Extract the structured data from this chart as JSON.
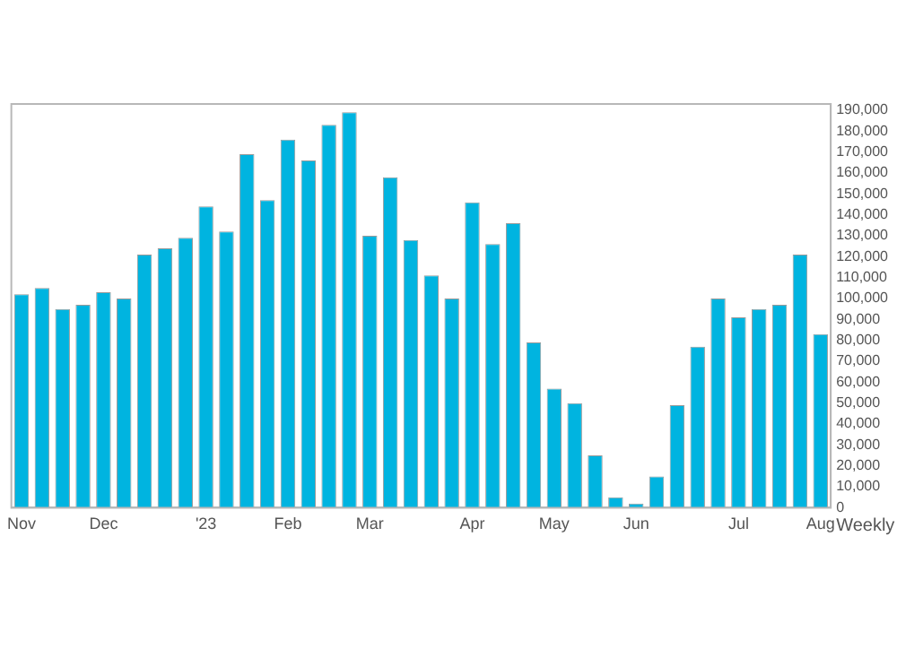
{
  "chart_data": {
    "type": "bar",
    "categories": [
      "Nov",
      null,
      null,
      null,
      "Dec",
      null,
      null,
      null,
      null,
      "'23",
      null,
      null,
      null,
      "Feb",
      null,
      null,
      null,
      "Mar",
      null,
      null,
      null,
      null,
      "Apr",
      null,
      null,
      null,
      "May",
      null,
      null,
      null,
      "Jun",
      null,
      null,
      null,
      null,
      "Jul",
      null,
      null,
      null,
      "Aug"
    ],
    "values": [
      102000,
      105000,
      95000,
      97000,
      103000,
      100000,
      121000,
      124000,
      129000,
      144000,
      132000,
      169000,
      147000,
      176000,
      166000,
      183000,
      189000,
      130000,
      158000,
      128000,
      111000,
      100000,
      146000,
      126000,
      136000,
      79000,
      57000,
      50000,
      25000,
      5000,
      2000,
      15000,
      49000,
      77000,
      100000,
      91000,
      95000,
      97000,
      121000,
      83000
    ],
    "color": "#00b4e0",
    "ylim": [
      0,
      193000
    ],
    "yticks": [
      {
        "value": 0,
        "label": "0"
      },
      {
        "value": 10000,
        "label": "10,000"
      },
      {
        "value": 20000,
        "label": "20,000"
      },
      {
        "value": 30000,
        "label": "30,000"
      },
      {
        "value": 40000,
        "label": "40,000"
      },
      {
        "value": 50000,
        "label": "50,000"
      },
      {
        "value": 60000,
        "label": "60,000"
      },
      {
        "value": 70000,
        "label": "70,000"
      },
      {
        "value": 80000,
        "label": "80,000"
      },
      {
        "value": 90000,
        "label": "90,000"
      },
      {
        "value": 100000,
        "label": "100,000"
      },
      {
        "value": 110000,
        "label": "110,000"
      },
      {
        "value": 120000,
        "label": "120,000"
      },
      {
        "value": 130000,
        "label": "130,000"
      },
      {
        "value": 140000,
        "label": "140,000"
      },
      {
        "value": 150000,
        "label": "150,000"
      },
      {
        "value": 160000,
        "label": "160,000"
      },
      {
        "value": 170000,
        "label": "170,000"
      },
      {
        "value": 180000,
        "label": "180,000"
      },
      {
        "value": 190000,
        "label": "190,000"
      }
    ],
    "grid": false,
    "legend": false,
    "annotations": [
      "Weekly"
    ]
  }
}
